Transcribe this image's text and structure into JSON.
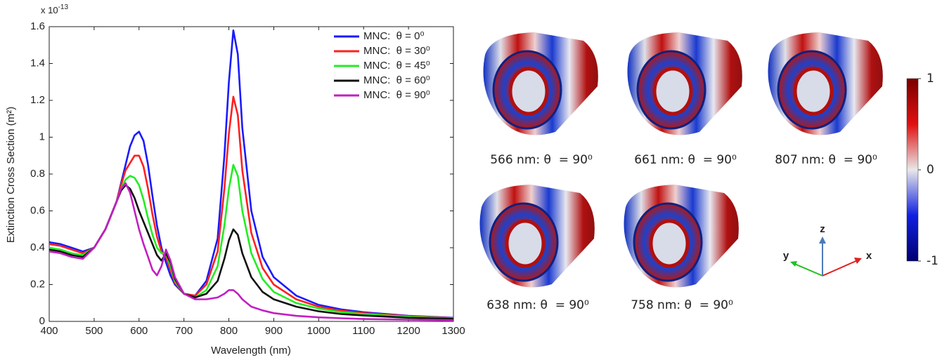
{
  "chart_data": {
    "type": "line",
    "x_label": "Wavelength (nm)",
    "y_label": "Extinction Cross Section (m²)",
    "y_multiplier": {
      "base": "x 10",
      "exponent": "-13"
    },
    "x": [
      400,
      425,
      450,
      475,
      500,
      525,
      550,
      560,
      570,
      580,
      590,
      600,
      610,
      620,
      630,
      640,
      650,
      660,
      670,
      680,
      700,
      725,
      750,
      775,
      790,
      800,
      810,
      820,
      830,
      850,
      875,
      900,
      950,
      1000,
      1050,
      1100,
      1200,
      1300
    ],
    "series": [
      {
        "name": "MNC:  θ = 0⁰",
        "color": "#1a1aff",
        "values": [
          0.43,
          0.42,
          0.4,
          0.38,
          0.4,
          0.5,
          0.65,
          0.75,
          0.85,
          0.95,
          1.01,
          1.03,
          0.98,
          0.85,
          0.68,
          0.52,
          0.4,
          0.32,
          0.25,
          0.2,
          0.15,
          0.14,
          0.22,
          0.45,
          0.9,
          1.3,
          1.58,
          1.45,
          1.05,
          0.6,
          0.35,
          0.24,
          0.14,
          0.09,
          0.065,
          0.05,
          0.03,
          0.02
        ]
      },
      {
        "name": "MNC:  θ = 30⁰",
        "color": "#ff2020",
        "values": [
          0.42,
          0.41,
          0.39,
          0.37,
          0.4,
          0.5,
          0.65,
          0.74,
          0.82,
          0.86,
          0.9,
          0.9,
          0.84,
          0.72,
          0.58,
          0.46,
          0.38,
          0.35,
          0.28,
          0.21,
          0.15,
          0.14,
          0.2,
          0.38,
          0.72,
          1.02,
          1.22,
          1.12,
          0.82,
          0.48,
          0.29,
          0.2,
          0.12,
          0.08,
          0.058,
          0.045,
          0.028,
          0.018
        ]
      },
      {
        "name": "MNC:  θ = 45⁰",
        "color": "#22ee22",
        "values": [
          0.4,
          0.39,
          0.37,
          0.36,
          0.4,
          0.5,
          0.65,
          0.72,
          0.77,
          0.79,
          0.78,
          0.74,
          0.66,
          0.56,
          0.47,
          0.4,
          0.37,
          0.37,
          0.3,
          0.22,
          0.15,
          0.13,
          0.17,
          0.3,
          0.52,
          0.72,
          0.85,
          0.79,
          0.6,
          0.37,
          0.23,
          0.16,
          0.1,
          0.07,
          0.05,
          0.04,
          0.025,
          0.016
        ]
      },
      {
        "name": "MNC:  θ = 60⁰",
        "color": "#111111",
        "values": [
          0.39,
          0.38,
          0.36,
          0.35,
          0.4,
          0.5,
          0.65,
          0.71,
          0.74,
          0.72,
          0.67,
          0.6,
          0.54,
          0.48,
          0.42,
          0.36,
          0.33,
          0.37,
          0.32,
          0.23,
          0.15,
          0.13,
          0.15,
          0.22,
          0.34,
          0.44,
          0.5,
          0.47,
          0.37,
          0.24,
          0.16,
          0.12,
          0.08,
          0.055,
          0.04,
          0.032,
          0.02,
          0.014
        ]
      },
      {
        "name": "MNC:  θ = 90⁰",
        "color": "#c21fc2",
        "values": [
          0.38,
          0.37,
          0.35,
          0.34,
          0.4,
          0.5,
          0.65,
          0.72,
          0.75,
          0.7,
          0.6,
          0.5,
          0.42,
          0.35,
          0.28,
          0.25,
          0.3,
          0.39,
          0.33,
          0.24,
          0.15,
          0.12,
          0.12,
          0.13,
          0.15,
          0.17,
          0.17,
          0.15,
          0.12,
          0.08,
          0.06,
          0.045,
          0.03,
          0.022,
          0.017,
          0.013,
          0.009,
          0.006
        ]
      }
    ],
    "xlim": [
      400,
      1300
    ],
    "xticks": [
      400,
      500,
      600,
      700,
      800,
      900,
      1000,
      1100,
      1200,
      1300
    ],
    "ylim": [
      0,
      1.6
    ],
    "yticks": [
      0,
      0.2,
      0.4,
      0.6,
      0.8,
      1,
      1.2,
      1.4,
      1.6
    ],
    "legend": "upper right",
    "grid": false
  },
  "panels": [
    {
      "caption": "566 nm: θ  = 90⁰"
    },
    {
      "caption": "661 nm: θ  = 90⁰"
    },
    {
      "caption": "807 nm: θ  = 90⁰"
    },
    {
      "caption": "638 nm: θ  = 90⁰"
    },
    {
      "caption": "758 nm: θ  = 90⁰"
    }
  ],
  "colorbar": {
    "ylim": [
      -1,
      1
    ],
    "yticks": [
      -1,
      0,
      1
    ]
  },
  "axes_triad": {
    "x": "x",
    "y": "y",
    "z": "z"
  }
}
